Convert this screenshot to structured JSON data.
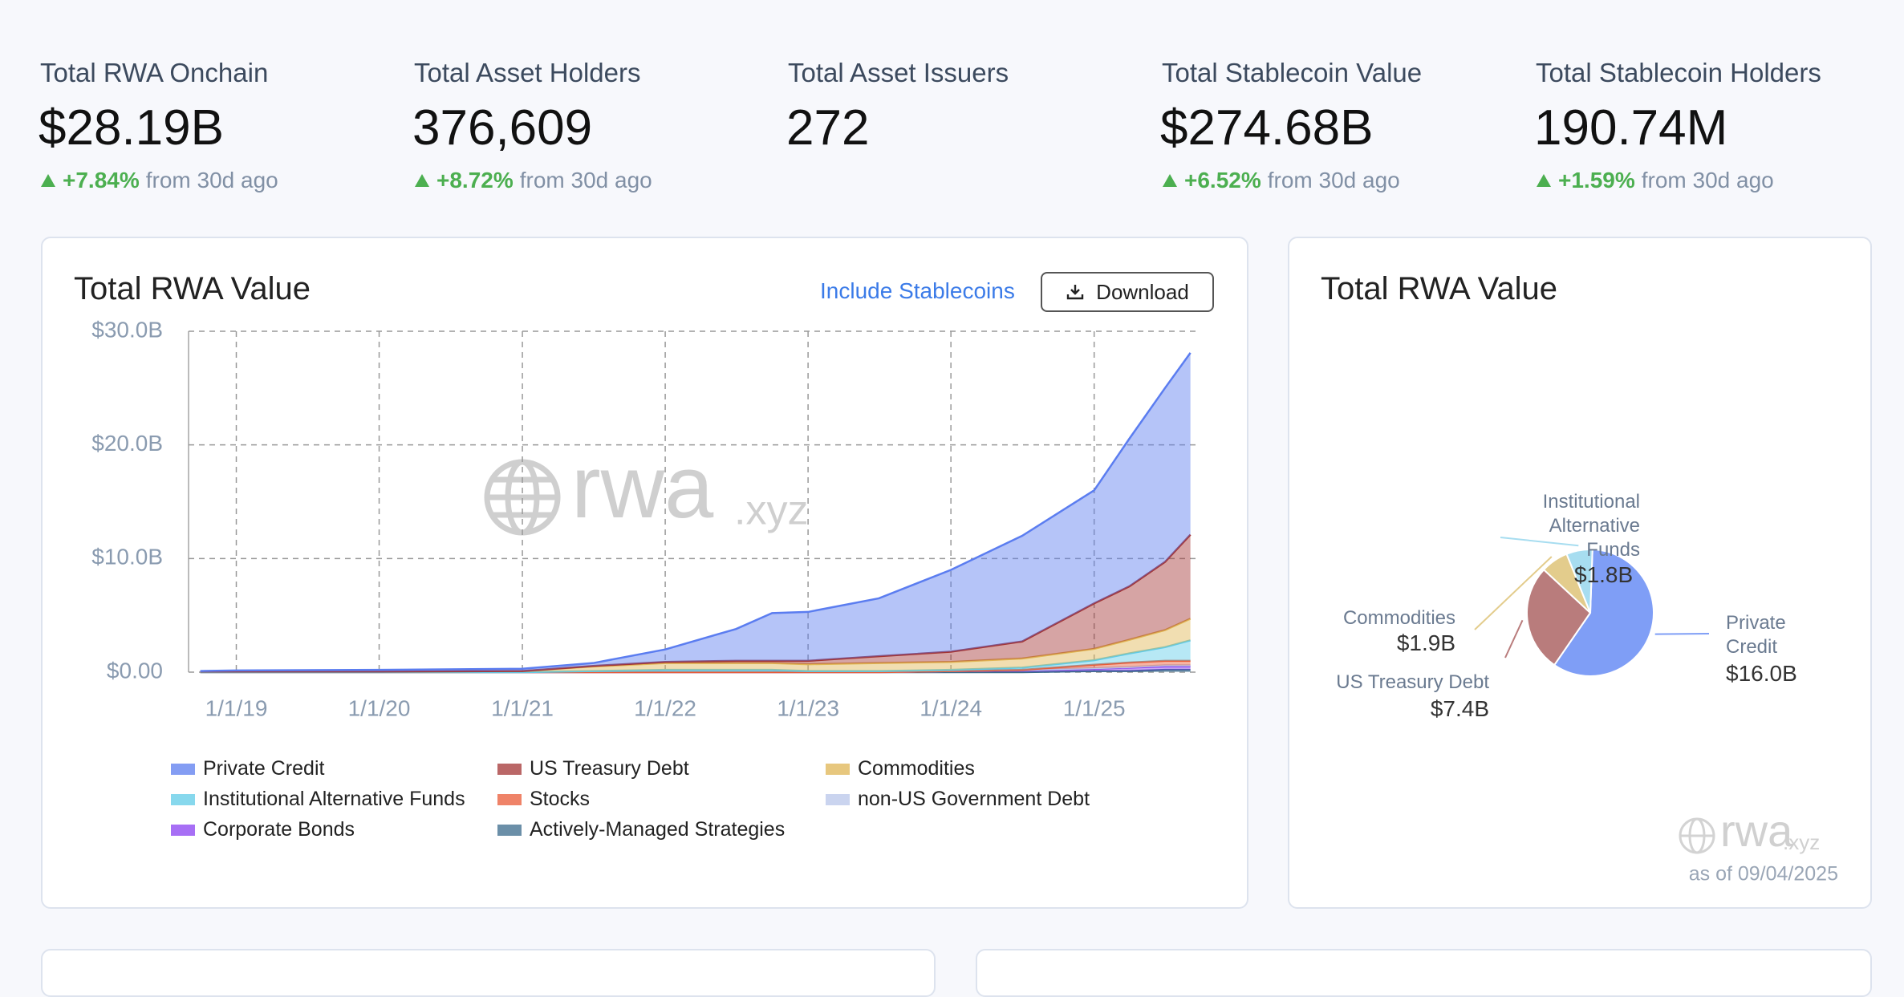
{
  "stats": [
    {
      "label": "Total RWA Onchain",
      "value": "$28.19B",
      "change": "+7.84%",
      "period": "from 30d ago"
    },
    {
      "label": "Total Asset Holders",
      "value": "376,609",
      "change": "+8.72%",
      "period": "from 30d ago"
    },
    {
      "label": "Total Asset Issuers",
      "value": "272"
    },
    {
      "label": "Total Stablecoin Value",
      "value": "$274.68B",
      "change": "+6.52%",
      "period": "from 30d ago"
    },
    {
      "label": "Total Stablecoin Holders",
      "value": "190.74M",
      "change": "+1.59%",
      "period": "from 30d ago"
    }
  ],
  "controls": {
    "toggle": "Include Stablecoins",
    "download": "Download"
  },
  "watermark": {
    "brand": "rwa",
    "suffix": ".xyz"
  },
  "as_of": "as of 09/04/2025",
  "chart_data": [
    {
      "type": "area",
      "stacked": true,
      "title": "Total RWA Value",
      "x": [
        "10/1/18",
        "1/1/19",
        "1/1/20",
        "1/1/21",
        "7/1/21",
        "1/1/22",
        "7/1/22",
        "10/1/22",
        "1/1/23",
        "7/1/23",
        "1/1/24",
        "7/1/24",
        "1/1/25",
        "4/1/25",
        "7/1/25",
        "9/4/25"
      ],
      "xlim": [
        "9/1/18",
        "9/17/25"
      ],
      "xticks": [
        "1/1/19",
        "1/1/20",
        "1/1/21",
        "1/1/22",
        "1/1/23",
        "1/1/24",
        "1/1/25"
      ],
      "ylim": [
        0,
        30
      ],
      "yticks": [
        {
          "value": 0,
          "label": "$0.00"
        },
        {
          "value": 10,
          "label": "$10.0B"
        },
        {
          "value": 20,
          "label": "$20.0B"
        },
        {
          "value": 30,
          "label": "$30.0B"
        }
      ],
      "grid": true,
      "series": [
        {
          "name": "Private Credit",
          "color": "#5b7df0",
          "values": [
            0.05,
            0.1,
            0.15,
            0.2,
            0.25,
            1.1,
            2.8,
            4.2,
            4.3,
            5.1,
            7.2,
            9.3,
            9.95,
            13.0,
            15.3,
            16.0
          ]
        },
        {
          "name": "US Treasury Debt",
          "color": "#a33535",
          "values": [
            0,
            0,
            0,
            0,
            0.05,
            0.1,
            0.2,
            0.2,
            0.3,
            0.6,
            0.9,
            1.5,
            4.0,
            4.7,
            6.0,
            7.4
          ]
        },
        {
          "name": "Commodities",
          "color": "#e0b553",
          "values": [
            0.05,
            0.05,
            0.05,
            0.1,
            0.4,
            0.6,
            0.6,
            0.6,
            0.6,
            0.7,
            0.7,
            0.8,
            1.0,
            1.2,
            1.5,
            1.9
          ]
        },
        {
          "name": "Institutional Alternative Funds",
          "color": "#5fcbe8",
          "values": [
            0,
            0,
            0,
            0,
            0.1,
            0.2,
            0.2,
            0.2,
            0.1,
            0.1,
            0.1,
            0.2,
            0.4,
            0.8,
            1.2,
            1.8
          ]
        },
        {
          "name": "Stocks",
          "color": "#ea5a36",
          "values": [
            0,
            0,
            0,
            0,
            0,
            0,
            0,
            0,
            0,
            0,
            0,
            0,
            0.3,
            0.4,
            0.4,
            0.4
          ]
        },
        {
          "name": "non-US Government Debt",
          "color": "#b9c6ea",
          "values": [
            0,
            0,
            0,
            0,
            0,
            0,
            0,
            0,
            0,
            0,
            0,
            0,
            0.05,
            0.05,
            0.1,
            0.1
          ]
        },
        {
          "name": "Corporate Bonds",
          "color": "#8a3ff2",
          "values": [
            0,
            0,
            0,
            0,
            0,
            0,
            0,
            0,
            0,
            0,
            0.1,
            0.2,
            0.2,
            0.3,
            0.3,
            0.3
          ]
        },
        {
          "name": "Actively-Managed Strategies",
          "color": "#3a6a8c",
          "values": [
            0,
            0,
            0,
            0,
            0,
            0,
            0,
            0,
            0,
            0,
            0,
            0,
            0.1,
            0.1,
            0.2,
            0.2
          ]
        }
      ]
    },
    {
      "type": "pie",
      "title": "Total RWA Value",
      "categories": [
        "Private Credit",
        "US Treasury Debt",
        "Commodities",
        "Institutional Alternative Funds"
      ],
      "values": [
        16.0,
        7.4,
        1.9,
        1.8
      ],
      "value_labels": [
        "$16.0B",
        "$7.4B",
        "$1.9B",
        "$1.8B"
      ],
      "colors": [
        "#7f9ef6",
        "#b97c7c",
        "#e3cc8c",
        "#a7ddf0"
      ]
    }
  ]
}
